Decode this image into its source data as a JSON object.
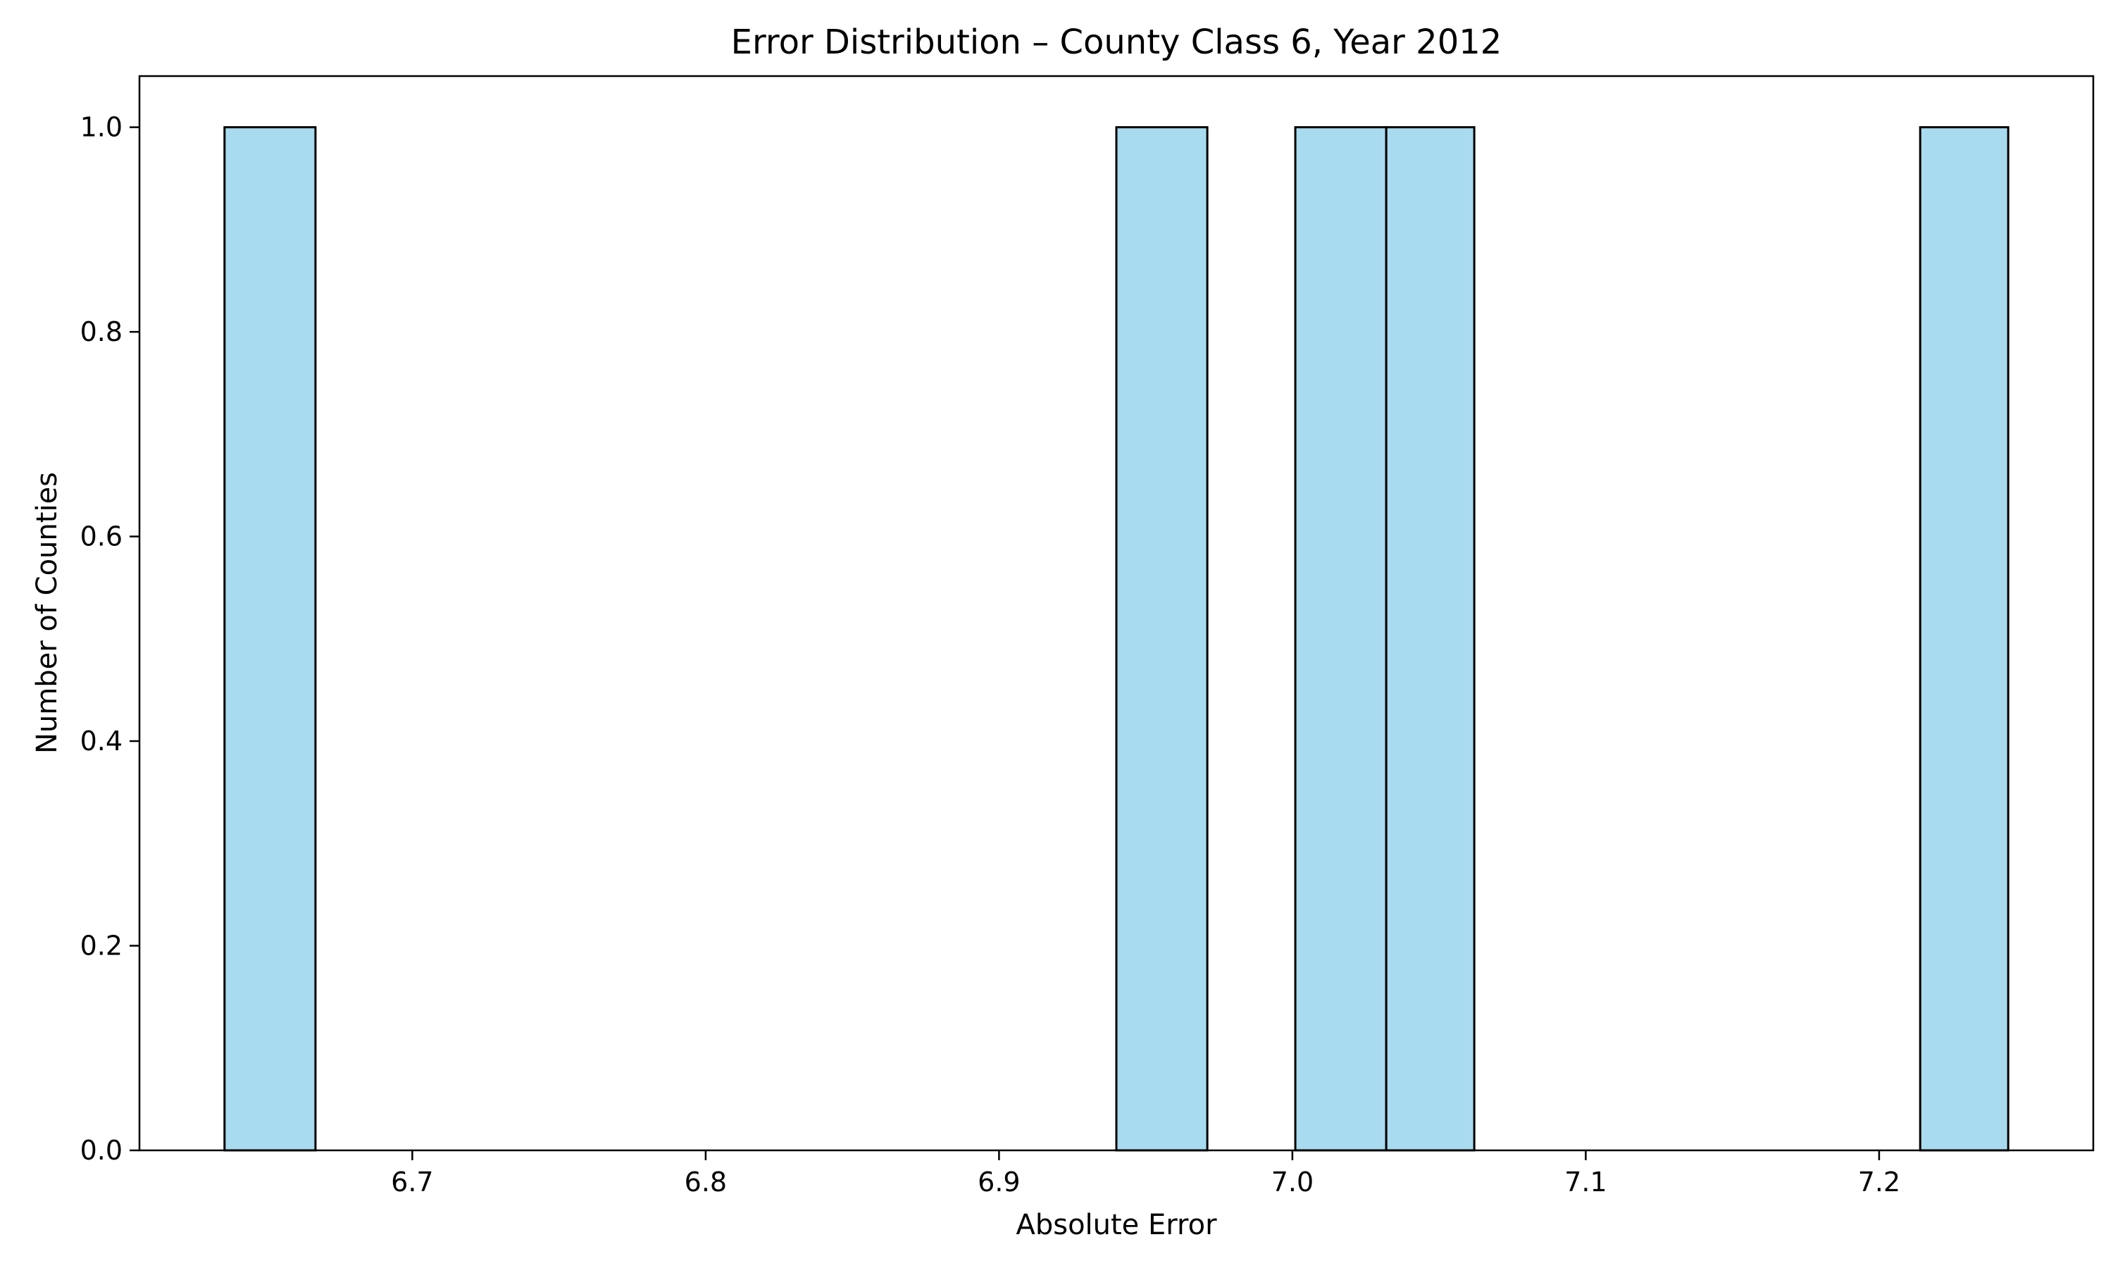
{
  "chart_data": {
    "type": "bar",
    "title": "Error Distribution – County Class 6, Year 2012",
    "xlabel": "Absolute Error",
    "ylabel": "Number of Counties",
    "xlim": [
      6.607,
      7.273
    ],
    "ylim": [
      0,
      1.05
    ],
    "xticks": [
      "6.7",
      "6.8",
      "6.9",
      "7.0",
      "7.1",
      "7.2"
    ],
    "yticks": [
      "0.0",
      "0.2",
      "0.4",
      "0.6",
      "0.8",
      "1.0"
    ],
    "grid": false,
    "legend": "none",
    "bar_color": "#a8dbef",
    "edge_color": "#000000",
    "bins": [
      {
        "x0": 6.636,
        "x1": 6.667,
        "count": 1
      },
      {
        "x0": 6.94,
        "x1": 6.971,
        "count": 1
      },
      {
        "x0": 7.001,
        "x1": 7.032,
        "count": 1
      },
      {
        "x0": 7.032,
        "x1": 7.062,
        "count": 1
      },
      {
        "x0": 7.214,
        "x1": 7.244,
        "count": 1
      }
    ]
  }
}
